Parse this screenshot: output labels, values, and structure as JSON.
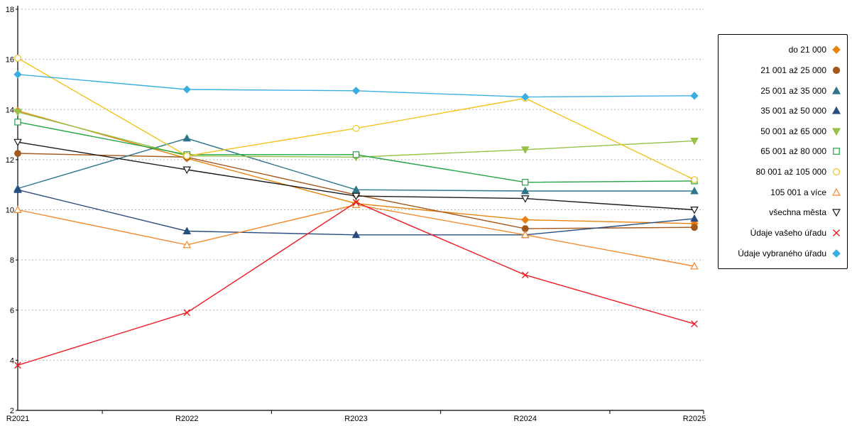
{
  "chart_data": {
    "type": "line",
    "title": "",
    "xlabel": "",
    "ylabel": "",
    "categories": [
      "R2021",
      "R2022",
      "R2023",
      "R2024",
      "R2025"
    ],
    "ylim": [
      2,
      18
    ],
    "ytick_step": 2,
    "grid": "horizontal-dotted",
    "legend_position": "right",
    "series": [
      {
        "name": "do 21 000",
        "color": "#E8820C",
        "marker": "diamond",
        "fill": "filled",
        "values": [
          13.95,
          12.05,
          10.25,
          9.6,
          9.45
        ]
      },
      {
        "name": "21 001 až 25 000",
        "color": "#A4581C",
        "marker": "circle",
        "fill": "filled",
        "values": [
          12.25,
          12.1,
          10.6,
          9.25,
          9.3
        ]
      },
      {
        "name": "25 001 až 35 000",
        "color": "#2E7589",
        "marker": "triangle-up",
        "fill": "filled",
        "values": [
          10.85,
          12.85,
          10.8,
          10.75,
          10.75
        ]
      },
      {
        "name": "35 001 až 50 000",
        "color": "#2A4D7F",
        "marker": "triangle-up",
        "fill": "filled",
        "values": [
          10.8,
          9.15,
          9.0,
          9.0,
          9.65
        ]
      },
      {
        "name": "50 001 až 65 000",
        "color": "#96C147",
        "marker": "triangle-down",
        "fill": "filled",
        "values": [
          13.9,
          12.15,
          12.1,
          12.4,
          12.75
        ]
      },
      {
        "name": "65 001 až 80 000",
        "color": "#23A346",
        "marker": "square",
        "fill": "open",
        "values": [
          13.5,
          12.2,
          12.2,
          11.1,
          11.15
        ]
      },
      {
        "name": "80 001 až 105 000",
        "color": "#F2C31B",
        "marker": "circle",
        "fill": "open",
        "values": [
          16.05,
          12.15,
          13.25,
          14.45,
          11.2
        ]
      },
      {
        "name": "105 001 a více",
        "color": "#F08A2D",
        "marker": "triangle-up",
        "fill": "open",
        "values": [
          10.0,
          8.6,
          10.2,
          9.0,
          7.75
        ]
      },
      {
        "name": "všechna města",
        "color": "#1A1A1A",
        "marker": "triangle-down",
        "fill": "open",
        "values": [
          12.7,
          11.6,
          10.55,
          10.45,
          10.0
        ]
      },
      {
        "name": "Údaje vašeho úřadu",
        "color": "#EE1C25",
        "marker": "x",
        "fill": "open",
        "values": [
          3.8,
          5.9,
          10.3,
          7.4,
          5.45
        ]
      },
      {
        "name": "Údaje vybraného úřadu",
        "color": "#3AAEE0",
        "marker": "diamond",
        "fill": "filled",
        "values": [
          15.4,
          14.8,
          14.75,
          14.5,
          14.55
        ]
      }
    ]
  }
}
